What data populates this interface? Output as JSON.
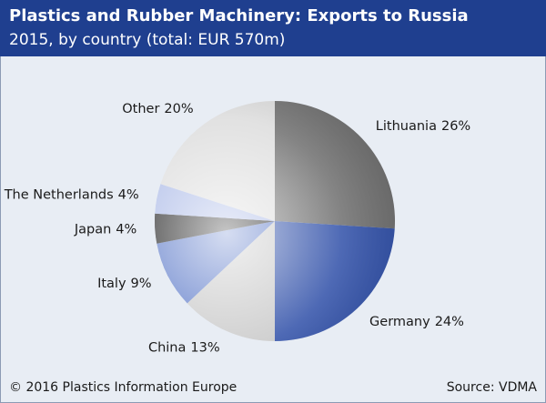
{
  "chart_data": {
    "type": "pie",
    "title": "Plastics and Rubber Machinery: Exports to Russia",
    "subtitle": "2015, by country (total: EUR 570m)",
    "categories": [
      "Lithuania",
      "Germany",
      "China",
      "Italy",
      "Japan",
      "The Netherlands",
      "Other"
    ],
    "values": [
      26,
      24,
      13,
      9,
      4,
      4,
      20
    ],
    "value_labels": [
      "26%",
      "24%",
      "13%",
      "9%",
      "4%",
      "4%",
      "20%"
    ],
    "colors": [
      "#6e6e6e",
      "#2f4fa8",
      "#c8c8c8",
      "#5a78c8",
      "#1e1e1e",
      "#a9b8e6",
      "#dcdcdc"
    ],
    "footer_left": "© 2016 Plastics Information Europe",
    "footer_right": "Source: VDMA"
  }
}
